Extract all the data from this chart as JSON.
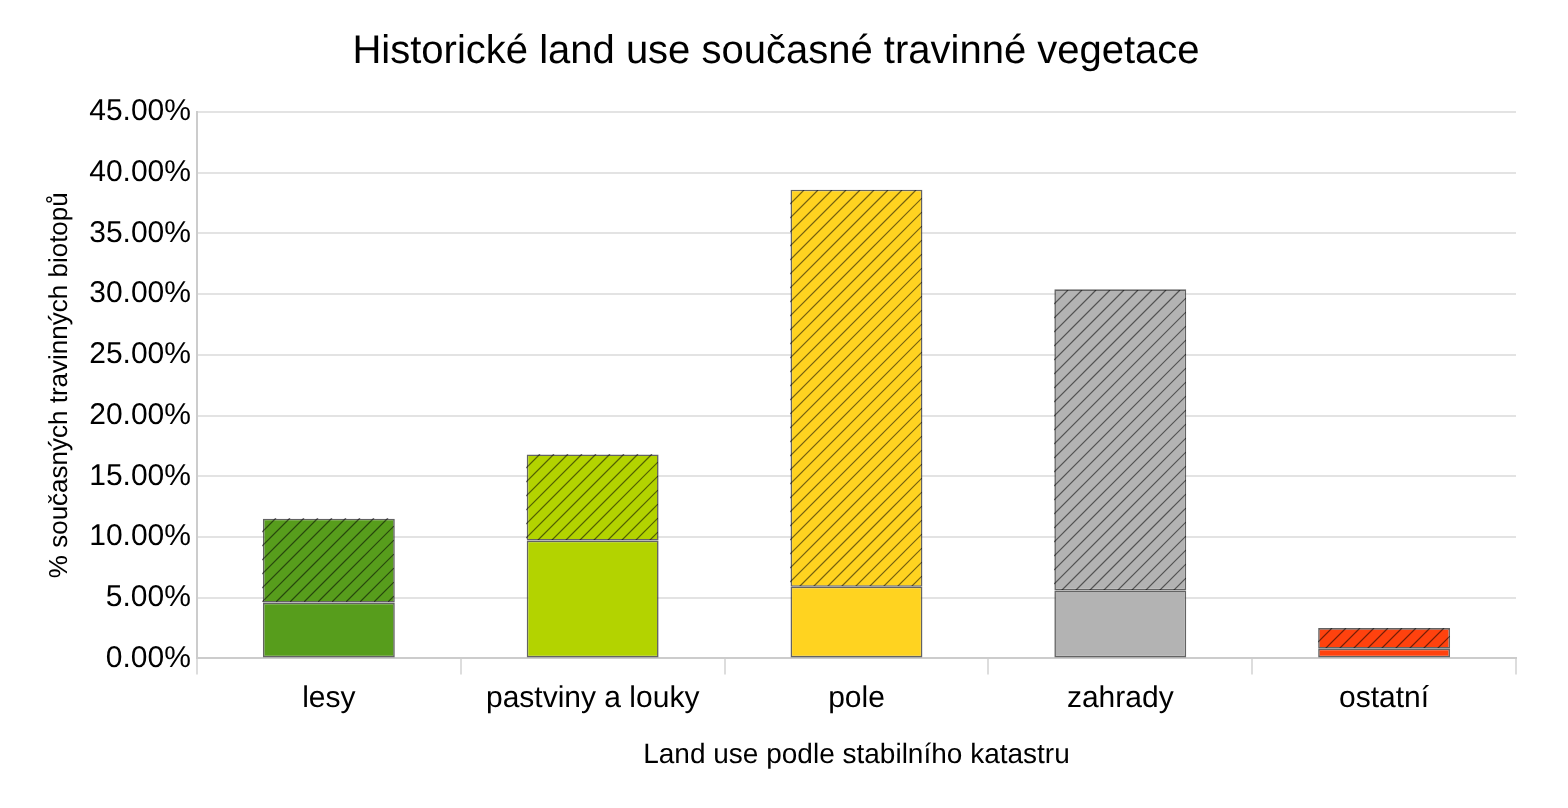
{
  "chart_data": {
    "type": "bar",
    "title": "Historické land use současné travinné vegetace",
    "xlabel": "Land use podle stabilního katastru",
    "ylabel": "% současných travinných biotopů",
    "categories": [
      "lesy",
      "pastviny a louky",
      "pole",
      "zahrady",
      "ostatní"
    ],
    "stacked": true,
    "series": [
      {
        "colors": [
          "#579d1c",
          "#b3d300",
          "#ffd320",
          "#b3b3b3",
          "#ff420e"
        ],
        "values": [
          4.6,
          9.7,
          5.9,
          5.6,
          0.8
        ]
      },
      {
        "colors": [
          "#579d1c",
          "#b3d300",
          "#ffd320",
          "#b3b3b3",
          "#ff420e"
        ],
        "values": [
          6.9,
          7.1,
          32.7,
          24.8,
          1.7
        ]
      }
    ],
    "ylim": [
      0,
      45
    ],
    "yticks": [
      {
        "value": 0,
        "label": "0.00%"
      },
      {
        "value": 5,
        "label": "5.00%"
      },
      {
        "value": 10,
        "label": "10.00%"
      },
      {
        "value": 15,
        "label": "15.00%"
      },
      {
        "value": 20,
        "label": "20.00%"
      },
      {
        "value": 25,
        "label": "25.00%"
      },
      {
        "value": 30,
        "label": "30.00%"
      },
      {
        "value": 35,
        "label": "35.00%"
      },
      {
        "value": 40,
        "label": "40.00%"
      },
      {
        "value": 45,
        "label": "45.00%"
      }
    ],
    "grid": "y",
    "legend": false
  }
}
